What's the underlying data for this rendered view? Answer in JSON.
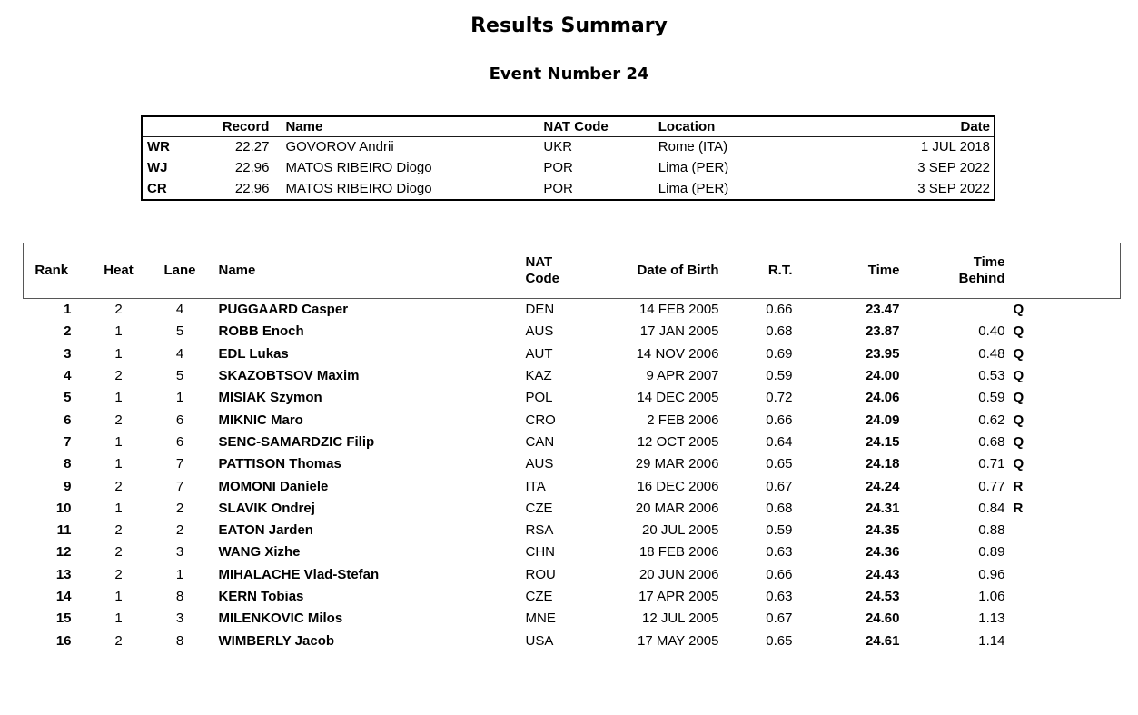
{
  "page": {
    "title": "Results Summary",
    "subtitle": "Event Number 24"
  },
  "records_table": {
    "headers": {
      "record": "Record",
      "name": "Name",
      "nat_code": "NAT Code",
      "location": "Location",
      "date": "Date"
    },
    "rows": [
      {
        "type": "WR",
        "time": "22.27",
        "name": "GOVOROV Andrii",
        "nat": "UKR",
        "location": "Rome (ITA)",
        "date": "1 JUL 2018"
      },
      {
        "type": "WJ",
        "time": "22.96",
        "name": "MATOS RIBEIRO Diogo",
        "nat": "POR",
        "location": "Lima (PER)",
        "date": "3 SEP 2022"
      },
      {
        "type": "CR",
        "time": "22.96",
        "name": "MATOS RIBEIRO Diogo",
        "nat": "POR",
        "location": "Lima (PER)",
        "date": "3 SEP 2022"
      }
    ]
  },
  "results_table": {
    "headers": {
      "rank": "Rank",
      "heat": "Heat",
      "lane": "Lane",
      "name": "Name",
      "nat_line1": "NAT",
      "nat_line2": "Code",
      "dob": "Date of Birth",
      "rt": "R.T.",
      "time": "Time",
      "behind_line1": "Time",
      "behind_line2": "Behind",
      "qual": ""
    },
    "rows": [
      {
        "rank": "1",
        "heat": "2",
        "lane": "4",
        "name": "PUGGAARD Casper",
        "nat": "DEN",
        "dob": "14 FEB 2005",
        "rt": "0.66",
        "time": "23.47",
        "behind": "",
        "qual": "Q"
      },
      {
        "rank": "2",
        "heat": "1",
        "lane": "5",
        "name": "ROBB Enoch",
        "nat": "AUS",
        "dob": "17 JAN 2005",
        "rt": "0.68",
        "time": "23.87",
        "behind": "0.40",
        "qual": "Q"
      },
      {
        "rank": "3",
        "heat": "1",
        "lane": "4",
        "name": "EDL Lukas",
        "nat": "AUT",
        "dob": "14 NOV 2006",
        "rt": "0.69",
        "time": "23.95",
        "behind": "0.48",
        "qual": "Q"
      },
      {
        "rank": "4",
        "heat": "2",
        "lane": "5",
        "name": "SKAZOBTSOV Maxim",
        "nat": "KAZ",
        "dob": "9 APR 2007",
        "rt": "0.59",
        "time": "24.00",
        "behind": "0.53",
        "qual": "Q"
      },
      {
        "rank": "5",
        "heat": "1",
        "lane": "1",
        "name": "MISIAK Szymon",
        "nat": "POL",
        "dob": "14 DEC 2005",
        "rt": "0.72",
        "time": "24.06",
        "behind": "0.59",
        "qual": "Q"
      },
      {
        "rank": "6",
        "heat": "2",
        "lane": "6",
        "name": "MIKNIC Maro",
        "nat": "CRO",
        "dob": "2 FEB 2006",
        "rt": "0.66",
        "time": "24.09",
        "behind": "0.62",
        "qual": "Q"
      },
      {
        "rank": "7",
        "heat": "1",
        "lane": "6",
        "name": "SENC-SAMARDZIC Filip",
        "nat": "CAN",
        "dob": "12 OCT 2005",
        "rt": "0.64",
        "time": "24.15",
        "behind": "0.68",
        "qual": "Q"
      },
      {
        "rank": "8",
        "heat": "1",
        "lane": "7",
        "name": "PATTISON Thomas",
        "nat": "AUS",
        "dob": "29 MAR 2006",
        "rt": "0.65",
        "time": "24.18",
        "behind": "0.71",
        "qual": "Q"
      },
      {
        "rank": "9",
        "heat": "2",
        "lane": "7",
        "name": "MOMONI Daniele",
        "nat": "ITA",
        "dob": "16 DEC 2006",
        "rt": "0.67",
        "time": "24.24",
        "behind": "0.77",
        "qual": "R"
      },
      {
        "rank": "10",
        "heat": "1",
        "lane": "2",
        "name": "SLAVIK Ondrej",
        "nat": "CZE",
        "dob": "20 MAR 2006",
        "rt": "0.68",
        "time": "24.31",
        "behind": "0.84",
        "qual": "R"
      },
      {
        "rank": "11",
        "heat": "2",
        "lane": "2",
        "name": "EATON Jarden",
        "nat": "RSA",
        "dob": "20 JUL 2005",
        "rt": "0.59",
        "time": "24.35",
        "behind": "0.88",
        "qual": ""
      },
      {
        "rank": "12",
        "heat": "2",
        "lane": "3",
        "name": "WANG Xizhe",
        "nat": "CHN",
        "dob": "18 FEB 2006",
        "rt": "0.63",
        "time": "24.36",
        "behind": "0.89",
        "qual": ""
      },
      {
        "rank": "13",
        "heat": "2",
        "lane": "1",
        "name": "MIHALACHE Vlad-Stefan",
        "nat": "ROU",
        "dob": "20 JUN 2006",
        "rt": "0.66",
        "time": "24.43",
        "behind": "0.96",
        "qual": ""
      },
      {
        "rank": "14",
        "heat": "1",
        "lane": "8",
        "name": "KERN Tobias",
        "nat": "CZE",
        "dob": "17 APR 2005",
        "rt": "0.63",
        "time": "24.53",
        "behind": "1.06",
        "qual": ""
      },
      {
        "rank": "15",
        "heat": "1",
        "lane": "3",
        "name": "MILENKOVIC Milos",
        "nat": "MNE",
        "dob": "12 JUL 2005",
        "rt": "0.67",
        "time": "24.60",
        "behind": "1.13",
        "qual": ""
      },
      {
        "rank": "16",
        "heat": "2",
        "lane": "8",
        "name": "WIMBERLY Jacob",
        "nat": "USA",
        "dob": "17 MAY 2005",
        "rt": "0.65",
        "time": "24.61",
        "behind": "1.14",
        "qual": ""
      }
    ]
  },
  "colors": {
    "text": "#000000",
    "background": "#ffffff",
    "header_box_border": "#565656",
    "records_border": "#000000"
  }
}
